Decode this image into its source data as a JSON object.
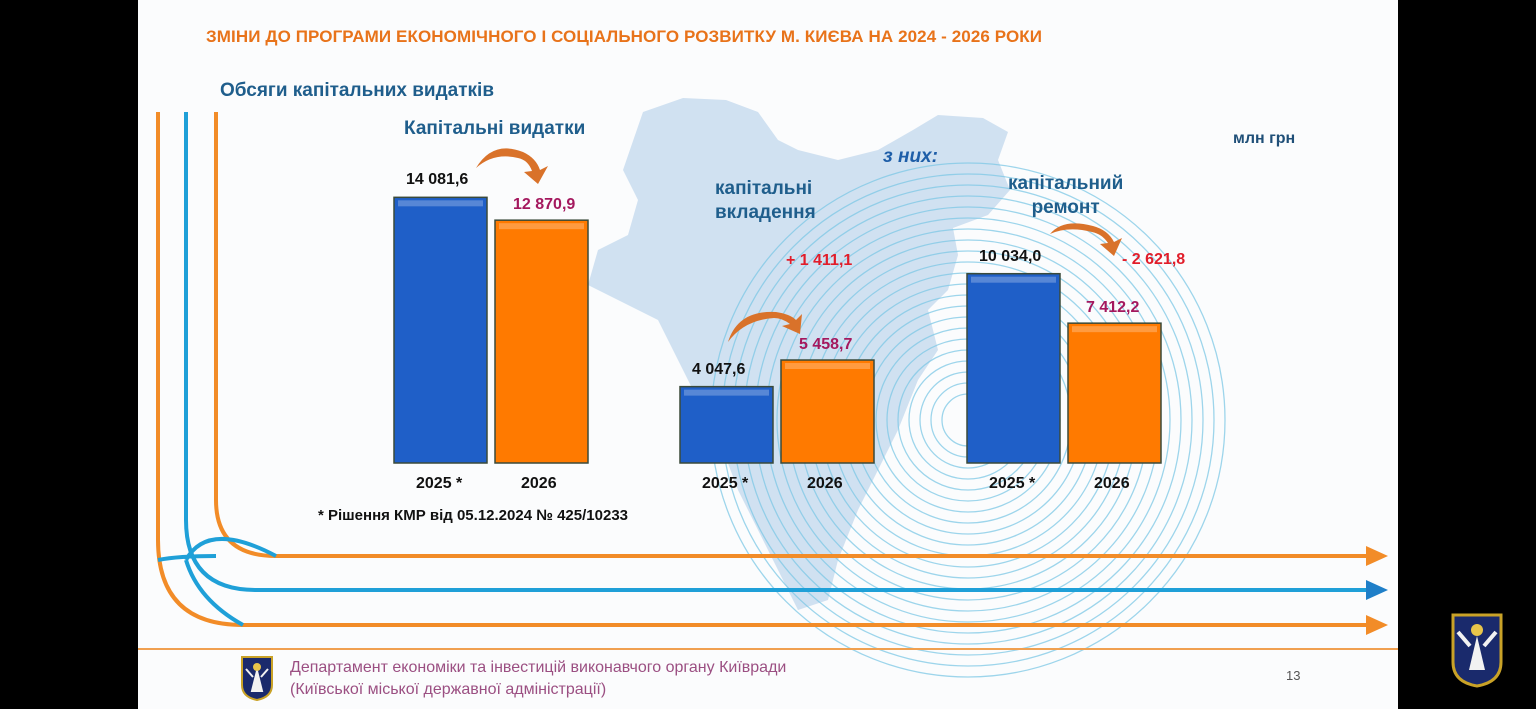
{
  "slide": {
    "title": "ЗМІНИ ДО ПРОГРАМИ ЕКОНОМІЧНОГО І СОЦІАЛЬНОГО РОЗВИТКУ М. КИЄВА НА 2024 - 2026 РОКИ",
    "subtitle": "Обсяги капітальних видатків",
    "unit": "млн грн",
    "of_which": "з них:",
    "footnote": "* Рішення КМР від 05.12.2024 № 425/10233",
    "department_line1": "Департамент економіки та інвестицій виконавчого органу Київради",
    "department_line2": "(Київської міської державної адміністрації)",
    "page_number": "13"
  },
  "colors": {
    "bar_2025": "#1f5fc8",
    "bar_2026": "#ff7a00",
    "title": "#e8731a",
    "label": "#1f5e8c",
    "value_2026": "#a4185e",
    "delta": "#e11d2a"
  },
  "chart_data": {
    "type": "bar",
    "categories": [
      "2025 *",
      "2026"
    ],
    "ylim": [
      0,
      15000
    ],
    "groups": [
      {
        "label": "Капітальні  видатки",
        "values": [
          14081.6,
          12870.9
        ],
        "value_labels": [
          "14 081,6",
          "12 870,9"
        ],
        "delta": ""
      },
      {
        "label_lines": [
          "капітальні",
          "вкладення"
        ],
        "values": [
          4047.6,
          5458.7
        ],
        "value_labels": [
          "4 047,6",
          "5 458,7"
        ],
        "delta": "+ 1 411,1"
      },
      {
        "label_lines": [
          "капітальний",
          "ремонт"
        ],
        "values": [
          10034.0,
          7412.2
        ],
        "value_labels": [
          "10 034,0",
          "7 412,2"
        ],
        "delta": "- 2 621,8"
      }
    ]
  }
}
